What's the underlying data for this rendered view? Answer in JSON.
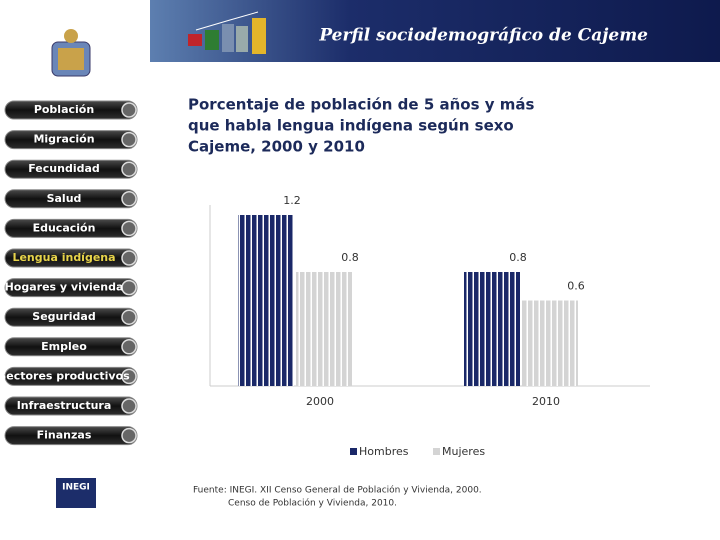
{
  "header": {
    "title": "Perfil sociodemográfico de Cajeme"
  },
  "menu": [
    "Población",
    "Migración",
    "Fecundidad",
    "Salud",
    "Educación",
    "Lengua indígena",
    "Hogares y vivienda",
    "Seguridad",
    "Empleo",
    "Sectores productivos",
    "Infraestructura",
    "Finanzas"
  ],
  "logo": {
    "text": "INEGI"
  },
  "chart_data": {
    "type": "bar",
    "title": [
      "Porcentaje de población de 5 años y más",
      "que habla lengua indígena según sexo",
      "Cajeme, 2000 y 2010"
    ],
    "categories": [
      "2000",
      "2010"
    ],
    "series": [
      {
        "name": "Hombres",
        "color": "#1a2868",
        "values": [
          1.2,
          0.8
        ]
      },
      {
        "name": "Mujeres",
        "color": "#d4d4d4",
        "values": [
          0.8,
          0.6
        ]
      }
    ],
    "source": [
      "Fuente: INEGI. XII Censo General de Población y Vivienda, 2000.",
      "Censo de Población y Vivienda, 2010."
    ]
  }
}
